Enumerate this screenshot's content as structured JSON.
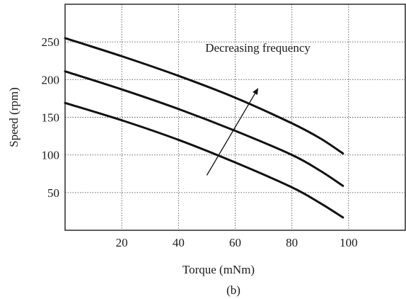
{
  "chart_data": {
    "type": "line",
    "title": "",
    "xlabel": "Torque (mNm)",
    "ylabel": "Speed (rpm)",
    "caption": "(b)",
    "xlim": [
      0,
      120
    ],
    "ylim": [
      0,
      300
    ],
    "x_ticks": [
      20,
      40,
      60,
      80,
      100
    ],
    "y_ticks": [
      50,
      100,
      150,
      200,
      250
    ],
    "grid": true,
    "series": [
      {
        "x": [
          0,
          20,
          40,
          60,
          80,
          90,
          98
        ],
        "y": [
          255,
          231,
          205,
          176,
          142,
          122,
          102
        ]
      },
      {
        "x": [
          0,
          20,
          40,
          60,
          80,
          90,
          98
        ],
        "y": [
          211,
          187,
          161,
          132,
          100,
          79,
          59
        ]
      },
      {
        "x": [
          0,
          20,
          40,
          60,
          80,
          90,
          98
        ],
        "y": [
          169,
          146,
          120,
          90,
          57,
          36,
          17
        ]
      }
    ],
    "annotation": {
      "text": "Decreasing frequency",
      "text_x": 68,
      "text_y": 237,
      "arrow_from": [
        50,
        73
      ],
      "arrow_to": [
        68,
        188
      ]
    }
  }
}
